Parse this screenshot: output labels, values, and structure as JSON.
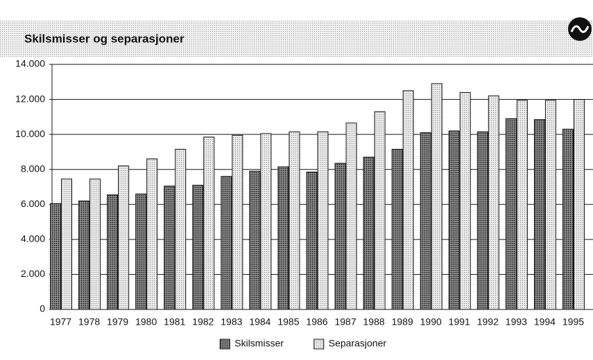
{
  "chart_data": {
    "type": "bar",
    "title": "Skilsmisser og separasjoner",
    "categories": [
      "1977",
      "1978",
      "1979",
      "1980",
      "1981",
      "1982",
      "1983",
      "1984",
      "1985",
      "1986",
      "1987",
      "1988",
      "1989",
      "1990",
      "1991",
      "1992",
      "1993",
      "1994",
      "1995"
    ],
    "series": [
      {
        "name": "Skilsmisser",
        "color": "#6a6a6a",
        "values": [
          6050,
          6200,
          6550,
          6600,
          7050,
          7100,
          7600,
          7900,
          8150,
          7850,
          8350,
          8700,
          9150,
          10100,
          10200,
          10150,
          10900,
          10850,
          10300
        ]
      },
      {
        "name": "Separasjoner",
        "color": "#e4e4e4",
        "values": [
          7450,
          7450,
          8200,
          8600,
          9150,
          9850,
          9950,
          10050,
          10150,
          10150,
          10650,
          11300,
          12500,
          12900,
          12400,
          12200,
          11950,
          11950,
          12000
        ]
      }
    ],
    "ylim": [
      0,
      14000
    ],
    "yticks": [
      0,
      {
        "value": 2000,
        "label": "2.000"
      },
      {
        "value": 4000,
        "label": "4.000"
      },
      {
        "value": 6000,
        "label": "6.000"
      },
      {
        "value": 8000,
        "label": "8.000"
      },
      {
        "value": 10000,
        "label": "10.000"
      },
      {
        "value": 12000,
        "label": "12.000"
      },
      {
        "value": 14000,
        "label": "14.000"
      }
    ],
    "grid": true,
    "legend": "bottom"
  }
}
